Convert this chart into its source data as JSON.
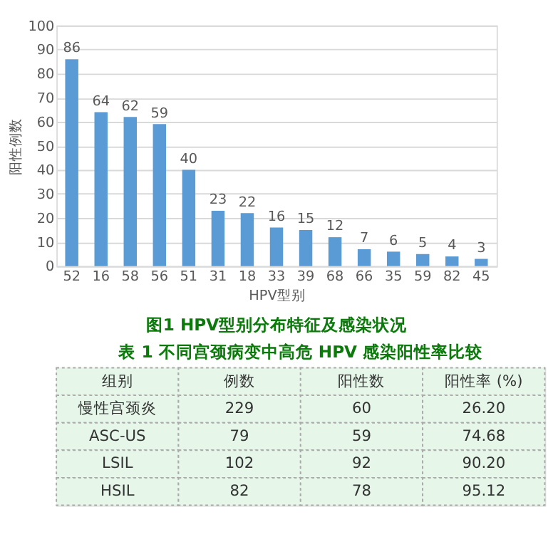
{
  "chart_data": [
    {
      "type": "bar",
      "xlabel": "HPV型别",
      "ylabel": "阳性例数",
      "categories": [
        "52",
        "16",
        "58",
        "56",
        "51",
        "31",
        "18",
        "33",
        "39",
        "68",
        "66",
        "35",
        "59",
        "82",
        "45"
      ],
      "values": [
        86,
        64,
        62,
        59,
        40,
        23,
        22,
        16,
        15,
        12,
        7,
        6,
        5,
        4,
        3
      ],
      "color": "#5b9bd5",
      "ylim": [
        0,
        100
      ],
      "yticks": [
        0,
        10,
        20,
        30,
        40,
        50,
        60,
        70,
        80,
        90,
        100
      ],
      "grid": "y",
      "data_labels": true,
      "annotations": [
        "图1 HPV型别分布特征及感染状况"
      ]
    },
    {
      "type": "other",
      "title": "表 1  不同宫颈病变中高危 HPV 感染阳性率比较",
      "categories": [
        "组别",
        "例数",
        "阳性数",
        "阳性率 (%)"
      ],
      "y_categories": [
        "慢性宫颈炎",
        "ASC-US",
        "LSIL",
        "HSIL"
      ],
      "cell_labels": [
        [
          "229",
          "60",
          "26.20"
        ],
        [
          "79",
          "59",
          "74.68"
        ],
        [
          "102",
          "92",
          "90.20"
        ],
        [
          "82",
          "78",
          "95.12"
        ]
      ]
    }
  ]
}
